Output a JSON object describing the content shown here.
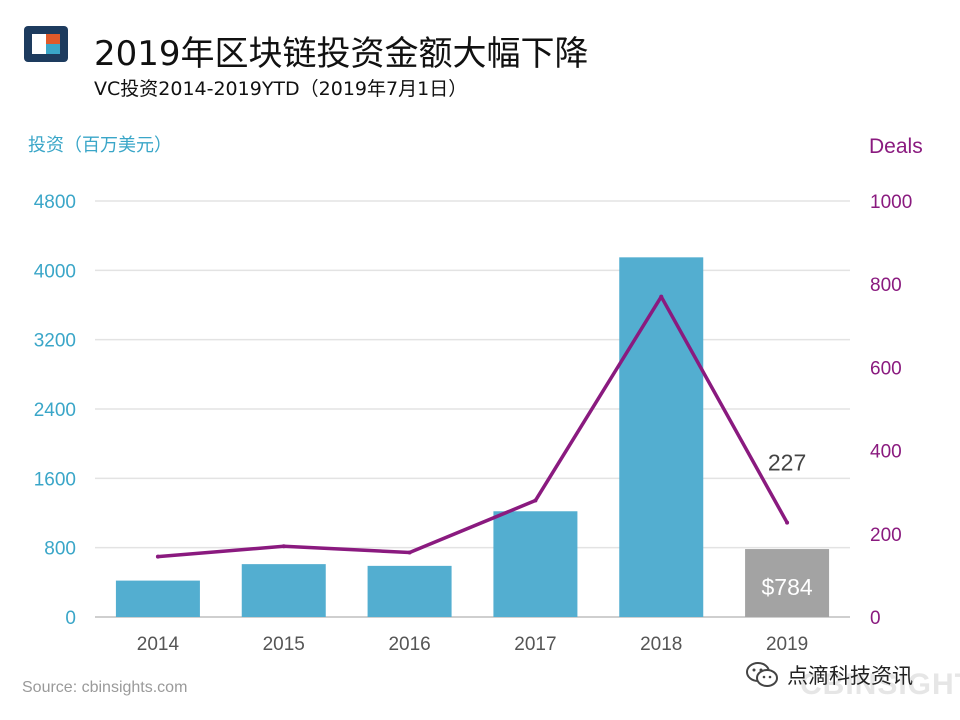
{
  "header": {
    "title": "2019年区块链投资金额大幅下降",
    "subtitle": "VC投资2014-2019YTD（2019年7月1日）"
  },
  "colors": {
    "bar": "#53aed0",
    "bar_highlight": "#a3a3a3",
    "line": "#8a1a7f",
    "left_axis": "#3aa6c8",
    "right_axis": "#8a1a7f",
    "grid": "#e3e3e3"
  },
  "chart_data": {
    "type": "bar",
    "categories": [
      "2014",
      "2015",
      "2016",
      "2017",
      "2018",
      "2019"
    ],
    "series": [
      {
        "type": "bar",
        "axis": "left",
        "values": [
          420,
          610,
          590,
          1220,
          4150,
          784
        ]
      },
      {
        "type": "line",
        "axis": "right",
        "values": [
          145,
          170,
          155,
          280,
          770,
          227
        ]
      }
    ],
    "ylabel": "投资（百万美元）",
    "y2label": "Deals",
    "ylim": [
      0,
      4800
    ],
    "y2lim": [
      0,
      1000
    ],
    "yticks": [
      0,
      800,
      1600,
      2400,
      3200,
      4000,
      4800
    ],
    "y2ticks": [
      0,
      200,
      400,
      600,
      800,
      1000
    ],
    "annotations": [
      {
        "text": "$784",
        "category": "2019",
        "target": "bar"
      },
      {
        "text": "227",
        "category": "2019",
        "target": "line"
      }
    ],
    "grid": true
  },
  "footer": {
    "source": "Source: cbinsights.com",
    "brand": "CBINSIGHTS",
    "wechat_name": "点滴科技资讯"
  },
  "icons": {
    "logo": "cb-insights-logo",
    "wechat": "wechat-icon"
  }
}
